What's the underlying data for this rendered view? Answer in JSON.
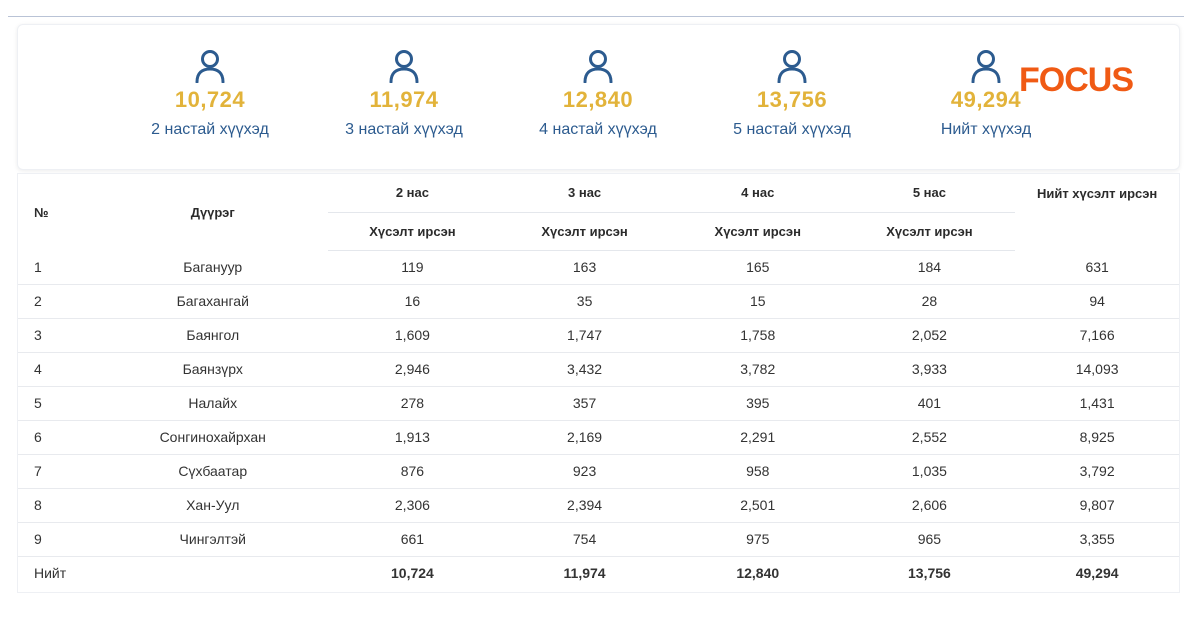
{
  "stats": [
    {
      "icon": "user-icon",
      "value": "10,724",
      "label": "2 настай хүүхэд"
    },
    {
      "icon": "user-icon",
      "value": "11,974",
      "label": "3 настай хүүхэд"
    },
    {
      "icon": "user-icon",
      "value": "12,840",
      "label": "4 настай хүүхэд"
    },
    {
      "icon": "user-icon",
      "value": "13,756",
      "label": "5 настай хүүхэд"
    },
    {
      "icon": "user-icon",
      "value": "49,294",
      "label": "Нийт хүүхэд"
    }
  ],
  "logo": {
    "text": "FOCUS",
    "color": "#f05a14"
  },
  "colors": {
    "accent": "#e2b33a",
    "label": "#2c5b8f",
    "icon": "#2c5b8f"
  },
  "table": {
    "headers": {
      "no": "№",
      "district": "Дүүрэг",
      "age2": "2 нас",
      "age3": "3 нас",
      "age4": "4 нас",
      "age5": "5 нас",
      "total": "Нийт хүсэлт ирсэн",
      "sub": "Хүсэлт ирсэн"
    },
    "rows": [
      [
        "1",
        "Багануур",
        "119",
        "163",
        "165",
        "184",
        "631"
      ],
      [
        "2",
        "Багахангай",
        "16",
        "35",
        "15",
        "28",
        "94"
      ],
      [
        "3",
        "Баянгол",
        "1,609",
        "1,747",
        "1,758",
        "2,052",
        "7,166"
      ],
      [
        "4",
        "Баянзүрх",
        "2,946",
        "3,432",
        "3,782",
        "3,933",
        "14,093"
      ],
      [
        "5",
        "Налайх",
        "278",
        "357",
        "395",
        "401",
        "1,431"
      ],
      [
        "6",
        "Сонгинохайрхан",
        "1,913",
        "2,169",
        "2,291",
        "2,552",
        "8,925"
      ],
      [
        "7",
        "Сүхбаатар",
        "876",
        "923",
        "958",
        "1,035",
        "3,792"
      ],
      [
        "8",
        "Хан-Уул",
        "2,306",
        "2,394",
        "2,501",
        "2,606",
        "9,807"
      ],
      [
        "9",
        "Чингэлтэй",
        "661",
        "754",
        "975",
        "965",
        "3,355"
      ]
    ],
    "total_row": [
      "Нийт",
      "",
      "10,724",
      "11,974",
      "12,840",
      "13,756",
      "49,294"
    ]
  }
}
